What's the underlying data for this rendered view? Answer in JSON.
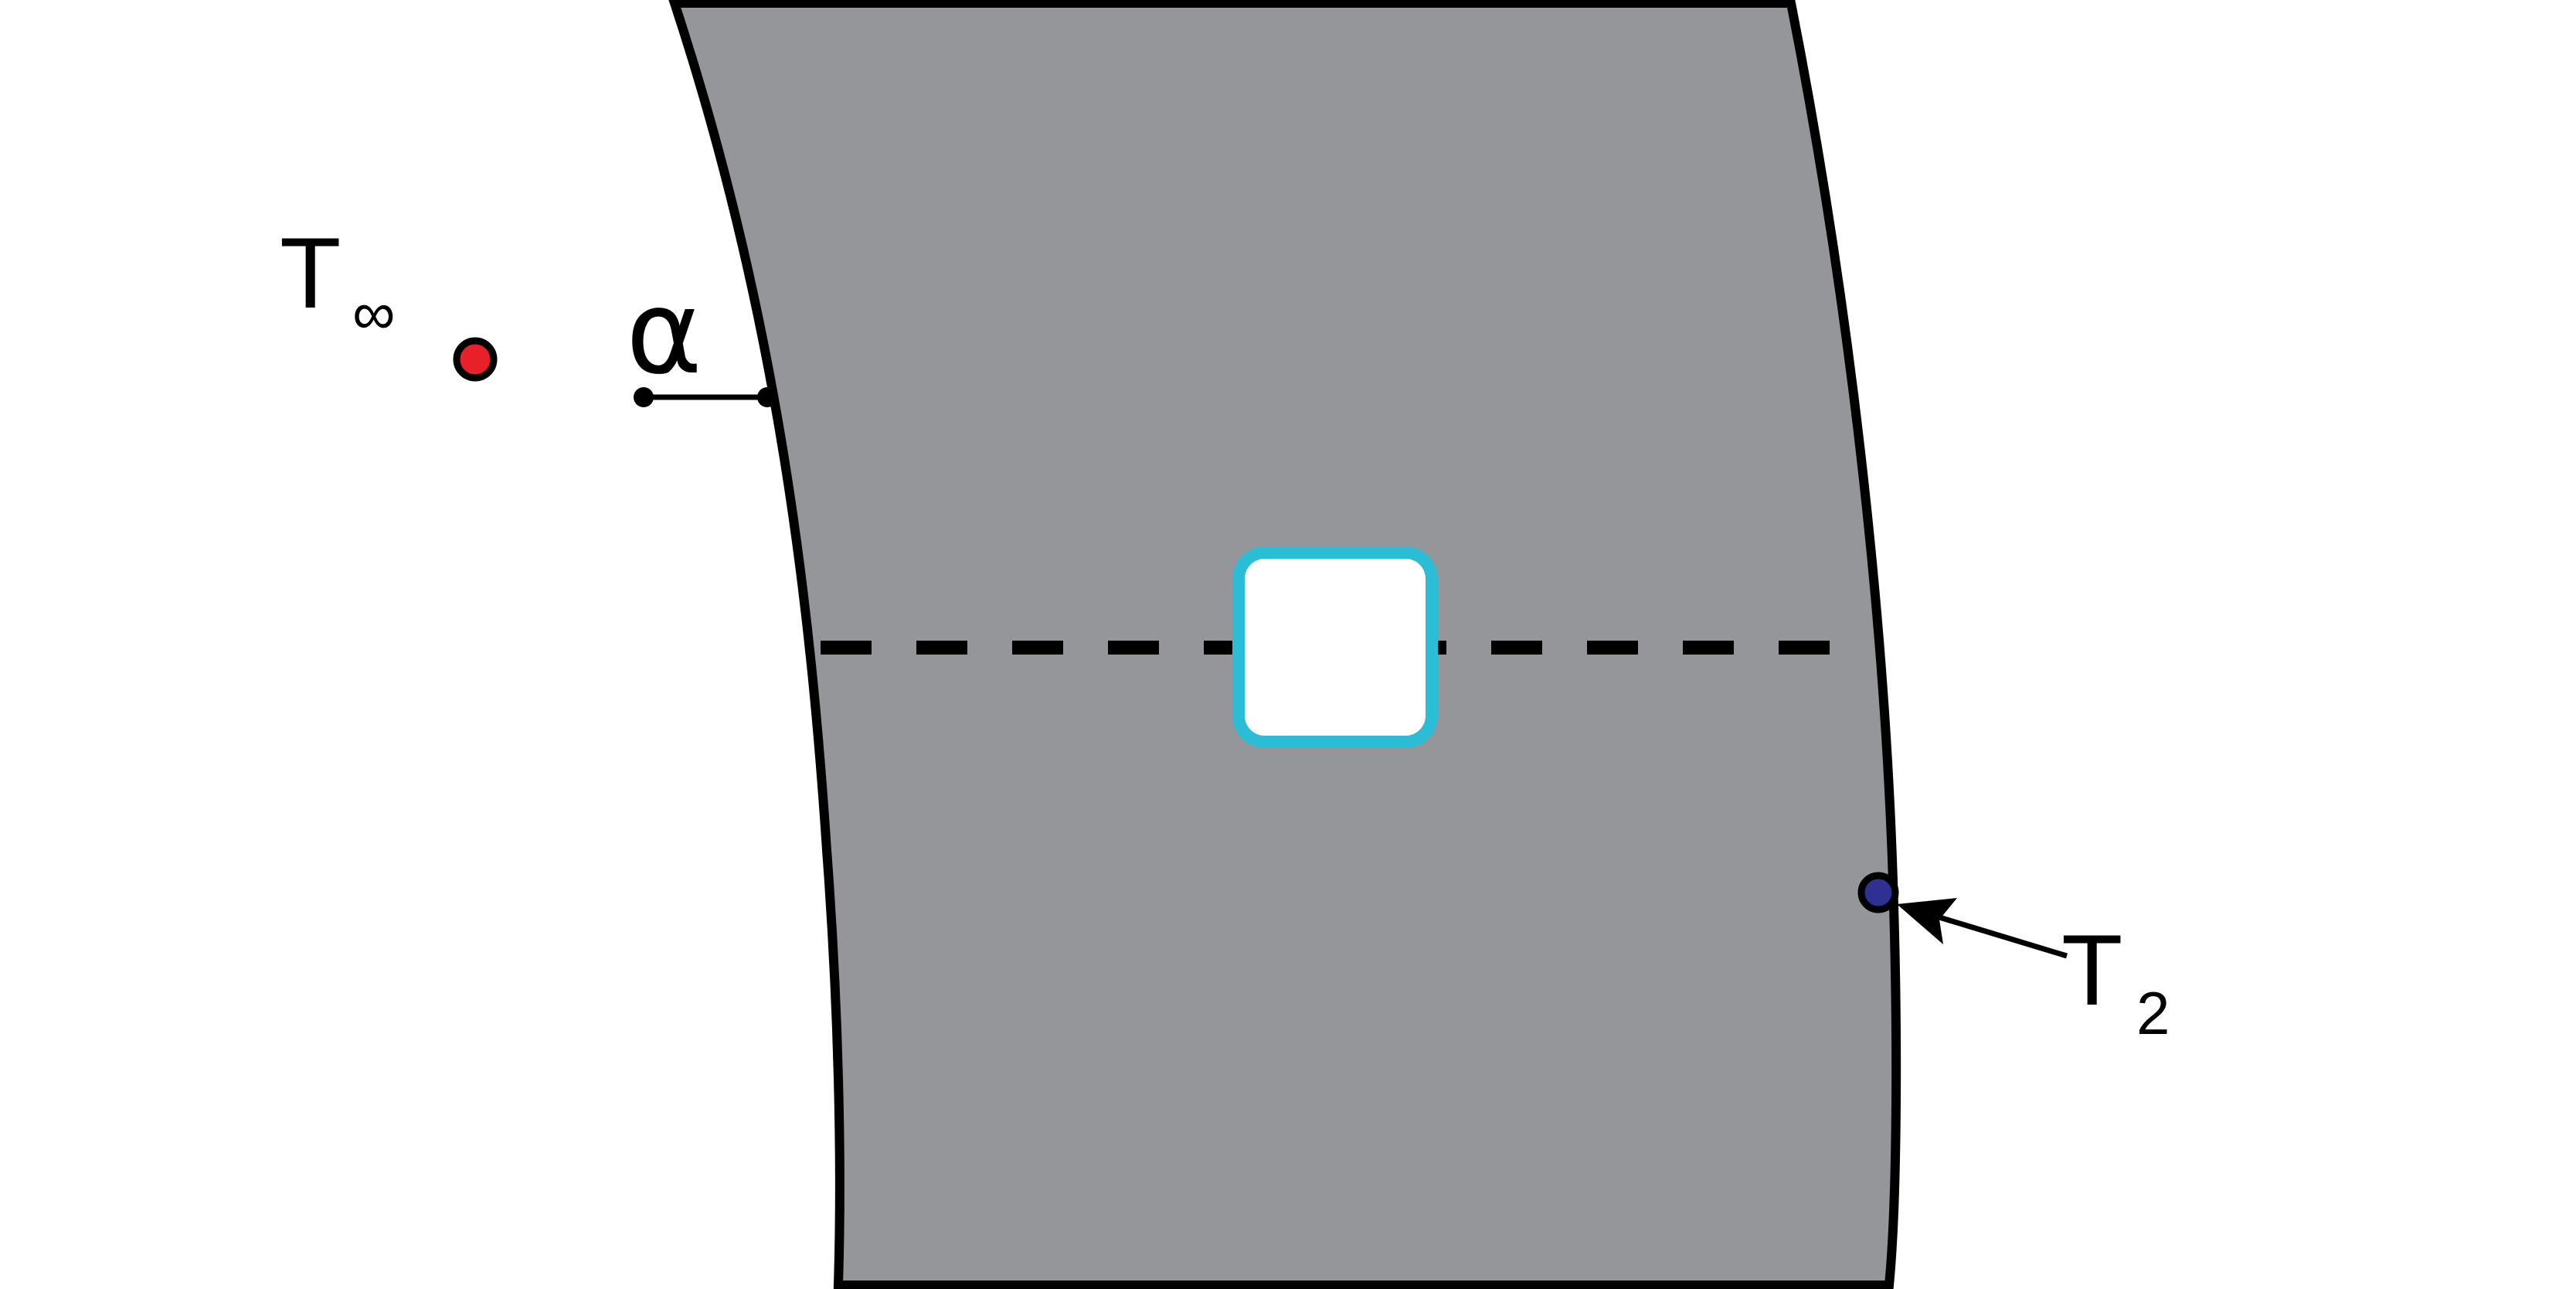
{
  "labels": {
    "t_inf_main": "T",
    "t_inf_sub": "∞",
    "alpha": "α",
    "t2_main": "T",
    "t2_sub": "2"
  },
  "colors": {
    "background": "#ffffff",
    "wall_fill": "#959699",
    "outline": "#000000",
    "ambient_point": "#e8202a",
    "surface_point": "#2e3192",
    "control_volume_border": "#2bbcd6",
    "control_volume_fill": "#ffffff"
  },
  "icons": {
    "ambient_marker": "red-dot-icon",
    "surface_marker": "navy-dot-icon",
    "leader_arrow": "arrow-icon"
  }
}
